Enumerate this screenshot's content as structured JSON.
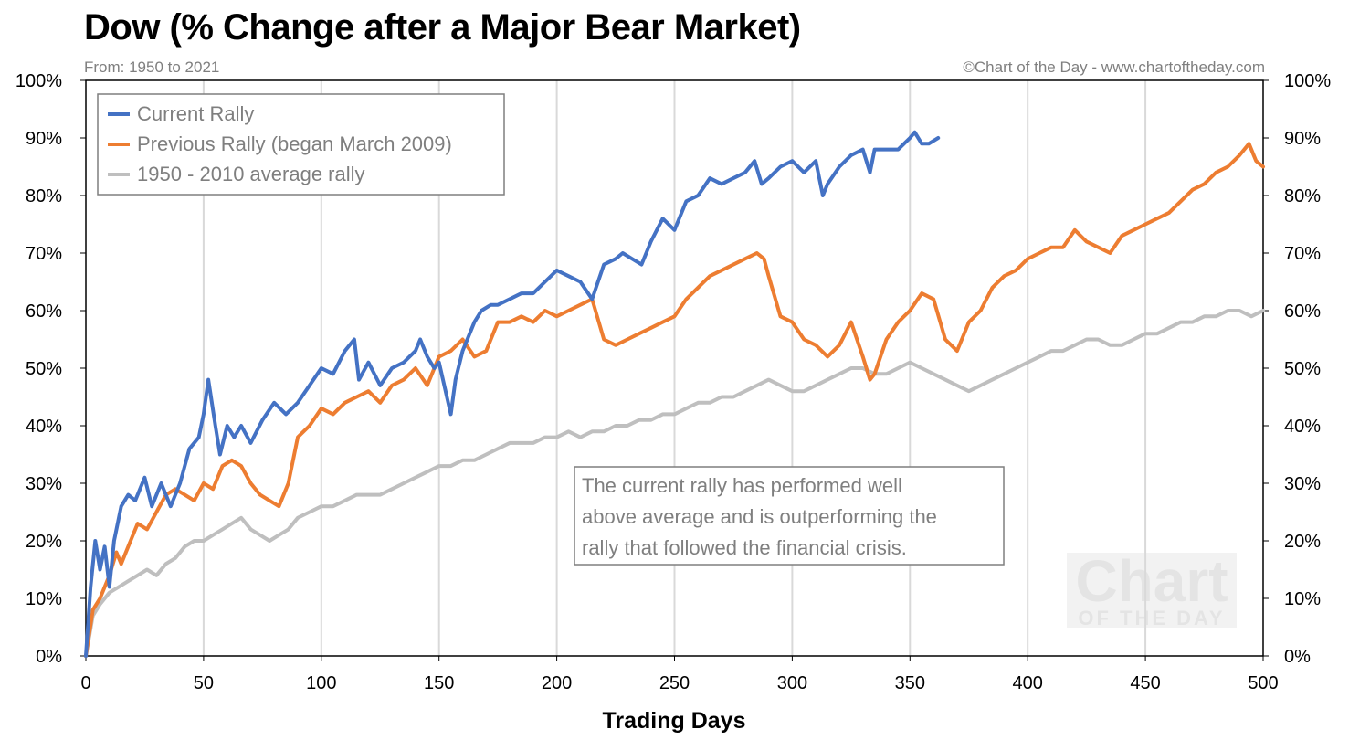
{
  "header": {
    "title": "Dow (% Change after a Major Bear Market)",
    "subtitle": "From: 1950 to 2021",
    "credit": "©Chart of the Day - www.chartoftheday.com"
  },
  "annotation": {
    "lines": [
      "The current rally has performed well",
      "above average and is outperforming the",
      "rally that followed the financial crisis."
    ]
  },
  "watermark": {
    "big": "Chart",
    "small": "OF THE DAY"
  },
  "chart_data": {
    "type": "line",
    "title": "Dow (% Change after a Major Bear Market)",
    "xlabel": "Trading Days",
    "ylabel": "",
    "xlim": [
      0,
      500
    ],
    "ylim": [
      0,
      100
    ],
    "x_ticks": [
      0,
      50,
      100,
      150,
      200,
      250,
      300,
      350,
      400,
      450,
      500
    ],
    "y_ticks": [
      0,
      10,
      20,
      30,
      40,
      50,
      60,
      70,
      80,
      90,
      100
    ],
    "y_tick_labels": [
      "0%",
      "10%",
      "20%",
      "30%",
      "40%",
      "50%",
      "60%",
      "70%",
      "80%",
      "90%",
      "100%"
    ],
    "grid": "vertical",
    "legend_position": "top-left",
    "series": [
      {
        "name": "Current Rally",
        "color": "#4472c4",
        "x": [
          0,
          2,
          4,
          6,
          8,
          10,
          12,
          15,
          18,
          21,
          25,
          28,
          32,
          36,
          40,
          44,
          48,
          50,
          52,
          55,
          57,
          60,
          63,
          66,
          70,
          75,
          80,
          85,
          90,
          95,
          100,
          105,
          110,
          114,
          116,
          120,
          125,
          130,
          135,
          140,
          142,
          145,
          148,
          150,
          155,
          157,
          160,
          165,
          168,
          172,
          175,
          180,
          185,
          190,
          195,
          200,
          205,
          210,
          215,
          220,
          225,
          228,
          232,
          236,
          240,
          245,
          250,
          255,
          260,
          265,
          270,
          275,
          280,
          284,
          287,
          290,
          295,
          300,
          305,
          310,
          313,
          315,
          320,
          325,
          330,
          333,
          335,
          340,
          345,
          350,
          352,
          355,
          358,
          362
        ],
        "y": [
          0,
          12,
          20,
          15,
          19,
          12,
          20,
          26,
          28,
          27,
          31,
          26,
          30,
          26,
          30,
          36,
          38,
          42,
          48,
          40,
          35,
          40,
          38,
          40,
          37,
          41,
          44,
          42,
          44,
          47,
          50,
          49,
          53,
          55,
          48,
          51,
          47,
          50,
          51,
          53,
          55,
          52,
          50,
          51,
          42,
          48,
          53,
          58,
          60,
          61,
          61,
          62,
          63,
          63,
          65,
          67,
          66,
          65,
          62,
          68,
          69,
          70,
          69,
          68,
          72,
          76,
          74,
          79,
          80,
          83,
          82,
          83,
          84,
          86,
          82,
          83,
          85,
          86,
          84,
          86,
          80,
          82,
          85,
          87,
          88,
          84,
          88,
          88,
          88,
          90,
          91,
          89,
          89,
          90
        ]
      },
      {
        "name": "Previous Rally (began March 2009)",
        "color": "#ed7d31",
        "x": [
          0,
          3,
          6,
          10,
          13,
          15,
          18,
          22,
          26,
          30,
          34,
          38,
          42,
          46,
          50,
          54,
          58,
          62,
          66,
          70,
          74,
          78,
          82,
          86,
          90,
          95,
          100,
          105,
          110,
          115,
          120,
          125,
          130,
          135,
          140,
          145,
          150,
          155,
          160,
          165,
          170,
          175,
          180,
          185,
          190,
          195,
          200,
          205,
          210,
          215,
          220,
          225,
          230,
          235,
          240,
          245,
          250,
          255,
          260,
          265,
          270,
          275,
          280,
          285,
          288,
          290,
          295,
          300,
          305,
          310,
          315,
          320,
          325,
          330,
          333,
          335,
          340,
          345,
          350,
          355,
          360,
          365,
          370,
          375,
          380,
          385,
          390,
          395,
          400,
          405,
          410,
          415,
          420,
          425,
          430,
          435,
          440,
          445,
          450,
          455,
          460,
          465,
          470,
          475,
          480,
          485,
          490,
          494,
          497,
          500
        ],
        "y": [
          0,
          8,
          10,
          14,
          18,
          16,
          19,
          23,
          22,
          25,
          28,
          29,
          28,
          27,
          30,
          29,
          33,
          34,
          33,
          30,
          28,
          27,
          26,
          30,
          38,
          40,
          43,
          42,
          44,
          45,
          46,
          44,
          47,
          48,
          50,
          47,
          52,
          53,
          55,
          52,
          53,
          58,
          58,
          59,
          58,
          60,
          59,
          60,
          61,
          62,
          55,
          54,
          55,
          56,
          57,
          58,
          59,
          62,
          64,
          66,
          67,
          68,
          69,
          70,
          69,
          66,
          59,
          58,
          55,
          54,
          52,
          54,
          58,
          52,
          48,
          49,
          55,
          58,
          60,
          63,
          62,
          55,
          53,
          58,
          60,
          64,
          66,
          67,
          69,
          70,
          71,
          71,
          74,
          72,
          71,
          70,
          73,
          74,
          75,
          76,
          77,
          79,
          81,
          82,
          84,
          85,
          87,
          89,
          86,
          85
        ]
      },
      {
        "name": "1950 - 2010 average rally",
        "color": "#bfbfbf",
        "x": [
          0,
          3,
          6,
          10,
          14,
          18,
          22,
          26,
          30,
          34,
          38,
          42,
          46,
          50,
          54,
          58,
          62,
          66,
          70,
          74,
          78,
          82,
          86,
          90,
          95,
          100,
          105,
          110,
          115,
          120,
          125,
          130,
          135,
          140,
          145,
          150,
          155,
          160,
          165,
          170,
          175,
          180,
          185,
          190,
          195,
          200,
          205,
          210,
          215,
          220,
          225,
          230,
          235,
          240,
          245,
          250,
          255,
          260,
          265,
          270,
          275,
          280,
          285,
          290,
          295,
          300,
          305,
          310,
          315,
          320,
          325,
          330,
          335,
          340,
          345,
          350,
          355,
          360,
          365,
          370,
          375,
          380,
          385,
          390,
          395,
          400,
          405,
          410,
          415,
          420,
          425,
          430,
          435,
          440,
          445,
          450,
          455,
          460,
          465,
          470,
          475,
          480,
          485,
          490,
          495,
          500
        ],
        "y": [
          0,
          7,
          9,
          11,
          12,
          13,
          14,
          15,
          14,
          16,
          17,
          19,
          20,
          20,
          21,
          22,
          23,
          24,
          22,
          21,
          20,
          21,
          22,
          24,
          25,
          26,
          26,
          27,
          28,
          28,
          28,
          29,
          30,
          31,
          32,
          33,
          33,
          34,
          34,
          35,
          36,
          37,
          37,
          37,
          38,
          38,
          39,
          38,
          39,
          39,
          40,
          40,
          41,
          41,
          42,
          42,
          43,
          44,
          44,
          45,
          45,
          46,
          47,
          48,
          47,
          46,
          46,
          47,
          48,
          49,
          50,
          50,
          49,
          49,
          50,
          51,
          50,
          49,
          48,
          47,
          46,
          47,
          48,
          49,
          50,
          51,
          52,
          53,
          53,
          54,
          55,
          55,
          54,
          54,
          55,
          56,
          56,
          57,
          58,
          58,
          59,
          59,
          60,
          60,
          59,
          60
        ]
      }
    ]
  }
}
